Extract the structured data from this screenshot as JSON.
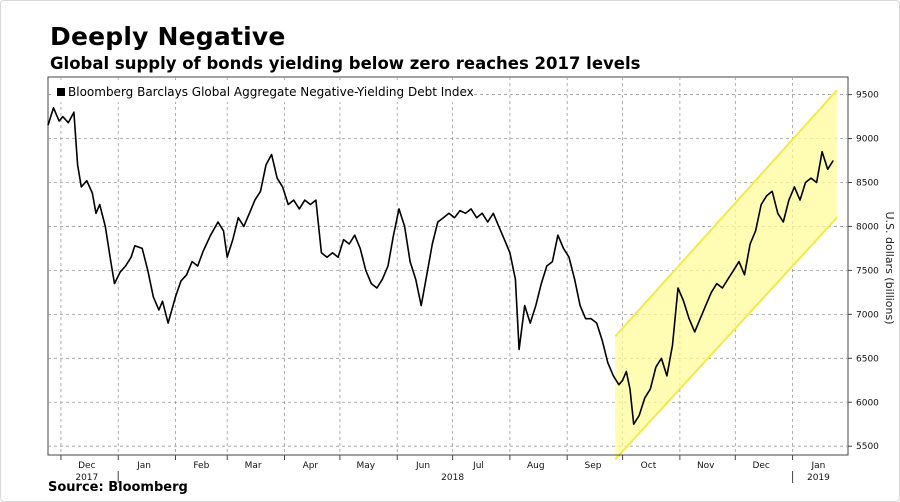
{
  "title": "Deeply Negative",
  "subtitle": "Global supply of bonds yielding below zero reaches 2017 levels",
  "source": "Source: Bloomberg",
  "chart_data": {
    "type": "line",
    "ylabel": "U.S. dollars (billions)",
    "ylim": [
      5400,
      9700
    ],
    "y_ticks": [
      5500,
      6000,
      6500,
      7000,
      7500,
      8000,
      8500,
      9000,
      9500
    ],
    "y_tick_labels": [
      "5500",
      "6000",
      "6500",
      "7000",
      "7500",
      "8000",
      "8500",
      "9000",
      "9500"
    ],
    "x_range": [
      "2017-11-24",
      "2019-01-31"
    ],
    "x_ticks": [
      {
        "label": "Dec",
        "date": "2017-12-15"
      },
      {
        "label": "Jan",
        "date": "2018-01-15"
      },
      {
        "label": "Feb",
        "date": "2018-02-15"
      },
      {
        "label": "Mar",
        "date": "2018-03-15"
      },
      {
        "label": "Apr",
        "date": "2018-04-15"
      },
      {
        "label": "May",
        "date": "2018-05-15"
      },
      {
        "label": "Jun",
        "date": "2018-06-15"
      },
      {
        "label": "Jul",
        "date": "2018-07-15"
      },
      {
        "label": "Aug",
        "date": "2018-08-15"
      },
      {
        "label": "Sep",
        "date": "2018-09-15"
      },
      {
        "label": "Oct",
        "date": "2018-10-15"
      },
      {
        "label": "Nov",
        "date": "2018-11-15"
      },
      {
        "label": "Dec",
        "date": "2018-12-15"
      },
      {
        "label": "Jan",
        "date": "2019-01-15"
      }
    ],
    "year_labels": [
      {
        "label": "2017",
        "date": "2017-12-15"
      },
      {
        "label": "2018",
        "date": "2018-07-01"
      },
      {
        "label": "2019",
        "date": "2019-01-15"
      }
    ],
    "grid": true,
    "legend_position": "top-left",
    "series": [
      {
        "name": "Bloomberg Barclays Global Aggregate Negative-Yielding Debt Index",
        "color": "#000000",
        "points": [
          [
            "2017-11-24",
            9150
          ],
          [
            "2017-11-27",
            9350
          ],
          [
            "2017-11-30",
            9200
          ],
          [
            "2017-12-02",
            9250
          ],
          [
            "2017-12-05",
            9180
          ],
          [
            "2017-12-08",
            9300
          ],
          [
            "2017-12-10",
            8700
          ],
          [
            "2017-12-12",
            8450
          ],
          [
            "2017-12-15",
            8520
          ],
          [
            "2017-12-18",
            8380
          ],
          [
            "2017-12-20",
            8150
          ],
          [
            "2017-12-22",
            8250
          ],
          [
            "2017-12-25",
            8000
          ],
          [
            "2017-12-28",
            7600
          ],
          [
            "2017-12-30",
            7350
          ],
          [
            "2018-01-02",
            7480
          ],
          [
            "2018-01-05",
            7550
          ],
          [
            "2018-01-08",
            7650
          ],
          [
            "2018-01-10",
            7780
          ],
          [
            "2018-01-14",
            7750
          ],
          [
            "2018-01-17",
            7500
          ],
          [
            "2018-01-20",
            7200
          ],
          [
            "2018-01-23",
            7050
          ],
          [
            "2018-01-25",
            7150
          ],
          [
            "2018-01-28",
            6900
          ],
          [
            "2018-02-01",
            7200
          ],
          [
            "2018-02-04",
            7380
          ],
          [
            "2018-02-07",
            7450
          ],
          [
            "2018-02-10",
            7600
          ],
          [
            "2018-02-13",
            7550
          ],
          [
            "2018-02-16",
            7720
          ],
          [
            "2018-02-20",
            7900
          ],
          [
            "2018-02-24",
            8050
          ],
          [
            "2018-02-27",
            7950
          ],
          [
            "2018-03-01",
            7650
          ],
          [
            "2018-03-04",
            7850
          ],
          [
            "2018-03-07",
            8100
          ],
          [
            "2018-03-10",
            8000
          ],
          [
            "2018-03-13",
            8150
          ],
          [
            "2018-03-16",
            8300
          ],
          [
            "2018-03-19",
            8400
          ],
          [
            "2018-03-22",
            8700
          ],
          [
            "2018-03-25",
            8820
          ],
          [
            "2018-03-28",
            8550
          ],
          [
            "2018-03-31",
            8450
          ],
          [
            "2018-04-03",
            8250
          ],
          [
            "2018-04-06",
            8300
          ],
          [
            "2018-04-09",
            8200
          ],
          [
            "2018-04-12",
            8300
          ],
          [
            "2018-04-15",
            8250
          ],
          [
            "2018-04-18",
            8300
          ],
          [
            "2018-04-21",
            7700
          ],
          [
            "2018-04-24",
            7650
          ],
          [
            "2018-04-27",
            7700
          ],
          [
            "2018-04-30",
            7650
          ],
          [
            "2018-05-03",
            7850
          ],
          [
            "2018-05-06",
            7800
          ],
          [
            "2018-05-09",
            7900
          ],
          [
            "2018-05-12",
            7750
          ],
          [
            "2018-05-15",
            7500
          ],
          [
            "2018-05-18",
            7350
          ],
          [
            "2018-05-21",
            7300
          ],
          [
            "2018-05-24",
            7400
          ],
          [
            "2018-05-27",
            7550
          ],
          [
            "2018-05-30",
            7900
          ],
          [
            "2018-06-02",
            8200
          ],
          [
            "2018-06-05",
            8000
          ],
          [
            "2018-06-08",
            7600
          ],
          [
            "2018-06-11",
            7400
          ],
          [
            "2018-06-14",
            7100
          ],
          [
            "2018-06-17",
            7450
          ],
          [
            "2018-06-20",
            7800
          ],
          [
            "2018-06-23",
            8050
          ],
          [
            "2018-06-26",
            8100
          ],
          [
            "2018-06-29",
            8150
          ],
          [
            "2018-07-02",
            8100
          ],
          [
            "2018-07-05",
            8180
          ],
          [
            "2018-07-08",
            8150
          ],
          [
            "2018-07-11",
            8200
          ],
          [
            "2018-07-14",
            8100
          ],
          [
            "2018-07-17",
            8150
          ],
          [
            "2018-07-20",
            8050
          ],
          [
            "2018-07-23",
            8150
          ],
          [
            "2018-07-26",
            8000
          ],
          [
            "2018-07-29",
            7850
          ],
          [
            "2018-08-01",
            7700
          ],
          [
            "2018-08-04",
            7400
          ],
          [
            "2018-08-06",
            6600
          ],
          [
            "2018-08-09",
            7100
          ],
          [
            "2018-08-12",
            6900
          ],
          [
            "2018-08-15",
            7100
          ],
          [
            "2018-08-18",
            7350
          ],
          [
            "2018-08-21",
            7550
          ],
          [
            "2018-08-24",
            7600
          ],
          [
            "2018-08-27",
            7900
          ],
          [
            "2018-08-30",
            7750
          ],
          [
            "2018-09-02",
            7650
          ],
          [
            "2018-09-05",
            7400
          ],
          [
            "2018-09-08",
            7100
          ],
          [
            "2018-09-11",
            6950
          ],
          [
            "2018-09-14",
            6950
          ],
          [
            "2018-09-17",
            6900
          ],
          [
            "2018-09-20",
            6700
          ],
          [
            "2018-09-23",
            6450
          ],
          [
            "2018-09-26",
            6300
          ],
          [
            "2018-09-29",
            6200
          ],
          [
            "2018-10-01",
            6250
          ],
          [
            "2018-10-03",
            6350
          ],
          [
            "2018-10-05",
            6150
          ],
          [
            "2018-10-07",
            5750
          ],
          [
            "2018-10-10",
            5850
          ],
          [
            "2018-10-13",
            6050
          ],
          [
            "2018-10-16",
            6150
          ],
          [
            "2018-10-19",
            6400
          ],
          [
            "2018-10-22",
            6500
          ],
          [
            "2018-10-25",
            6300
          ],
          [
            "2018-10-28",
            6650
          ],
          [
            "2018-10-31",
            7300
          ],
          [
            "2018-11-03",
            7150
          ],
          [
            "2018-11-06",
            6950
          ],
          [
            "2018-11-09",
            6800
          ],
          [
            "2018-11-12",
            6950
          ],
          [
            "2018-11-15",
            7100
          ],
          [
            "2018-11-18",
            7250
          ],
          [
            "2018-11-21",
            7350
          ],
          [
            "2018-11-24",
            7300
          ],
          [
            "2018-11-27",
            7400
          ],
          [
            "2018-11-30",
            7500
          ],
          [
            "2018-12-03",
            7600
          ],
          [
            "2018-12-06",
            7450
          ],
          [
            "2018-12-09",
            7800
          ],
          [
            "2018-12-12",
            7950
          ],
          [
            "2018-12-15",
            8250
          ],
          [
            "2018-12-18",
            8350
          ],
          [
            "2018-12-21",
            8400
          ],
          [
            "2018-12-24",
            8150
          ],
          [
            "2018-12-27",
            8050
          ],
          [
            "2018-12-30",
            8300
          ],
          [
            "2019-01-02",
            8450
          ],
          [
            "2019-01-05",
            8300
          ],
          [
            "2019-01-08",
            8500
          ],
          [
            "2019-01-11",
            8550
          ],
          [
            "2019-01-14",
            8500
          ],
          [
            "2019-01-17",
            8850
          ],
          [
            "2019-01-20",
            8650
          ],
          [
            "2019-01-23",
            8750
          ]
        ]
      }
    ],
    "channel": {
      "color": "#fffb99",
      "border": "#f2e94e",
      "upper": [
        [
          "2018-09-27",
          6750
        ],
        [
          "2019-01-25",
          9550
        ]
      ],
      "lower": [
        [
          "2018-09-27",
          5350
        ],
        [
          "2019-01-25",
          8100
        ]
      ]
    }
  }
}
